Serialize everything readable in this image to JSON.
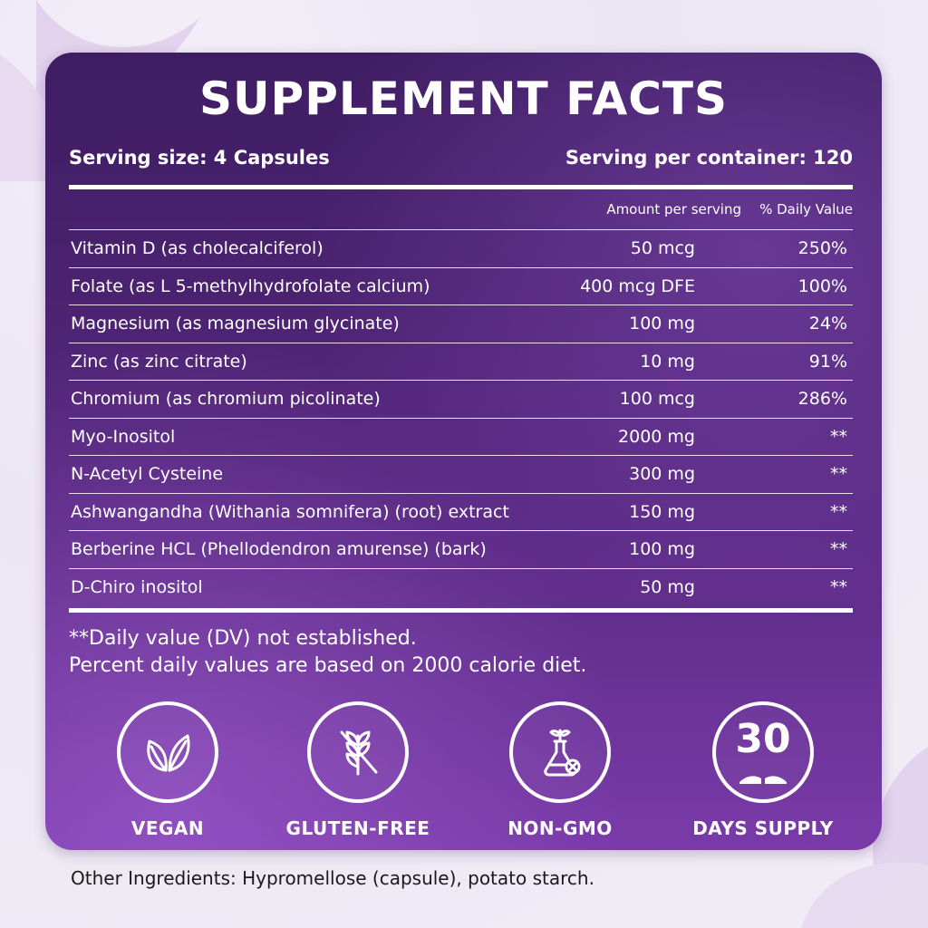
{
  "title": "SUPPLEMENT FACTS",
  "serving": {
    "size": "Serving size: 4 Capsules",
    "per_container": "Serving per container: 120"
  },
  "columns": {
    "amount": "Amount per serving",
    "daily_value": "% Daily Value"
  },
  "rows": [
    {
      "name": "Vitamin D (as cholecalciferol)",
      "amount": "50 mcg",
      "dv": "250%"
    },
    {
      "name": "Folate (as L 5-methylhydrofolate calcium)",
      "amount": "400 mcg DFE",
      "dv": "100%"
    },
    {
      "name": "Magnesium (as magnesium glycinate)",
      "amount": "100 mg",
      "dv": "24%"
    },
    {
      "name": "Zinc (as zinc citrate)",
      "amount": "10 mg",
      "dv": "91%"
    },
    {
      "name": "Chromium (as chromium picolinate)",
      "amount": "100 mcg",
      "dv": "286%"
    },
    {
      "name": "Myo-Inositol",
      "amount": "2000 mg",
      "dv": "**"
    },
    {
      "name": "N-Acetyl Cysteine",
      "amount": "300 mg",
      "dv": "**"
    },
    {
      "name": "Ashwangandha (Withania somnifera) (root) extract",
      "amount": "150 mg",
      "dv": "**"
    },
    {
      "name": "Berberine HCL (Phellodendron amurense) (bark)",
      "amount": "100 mg",
      "dv": "**"
    },
    {
      "name": "D-Chiro inositol",
      "amount": "50 mg",
      "dv": "**"
    }
  ],
  "notes": {
    "line1": "**Daily value (DV) not established.",
    "line2": "Percent daily values are based on 2000 calorie diet."
  },
  "badges": [
    {
      "label": "VEGAN",
      "icon": "leaves-icon"
    },
    {
      "label": "GLUTEN-FREE",
      "icon": "no-gluten-icon"
    },
    {
      "label": "NON-GMO",
      "icon": "flask-sprout-icon"
    },
    {
      "label": "DAYS SUPPLY",
      "icon": "calendar-30-icon",
      "number": "30"
    }
  ],
  "other_ingredients": "Other Ingredients: Hypromellose (capsule), potato starch.",
  "colors": {
    "panel_top": "#3f1d63",
    "panel_bottom": "#7a3ba9",
    "text": "#ffffff"
  }
}
